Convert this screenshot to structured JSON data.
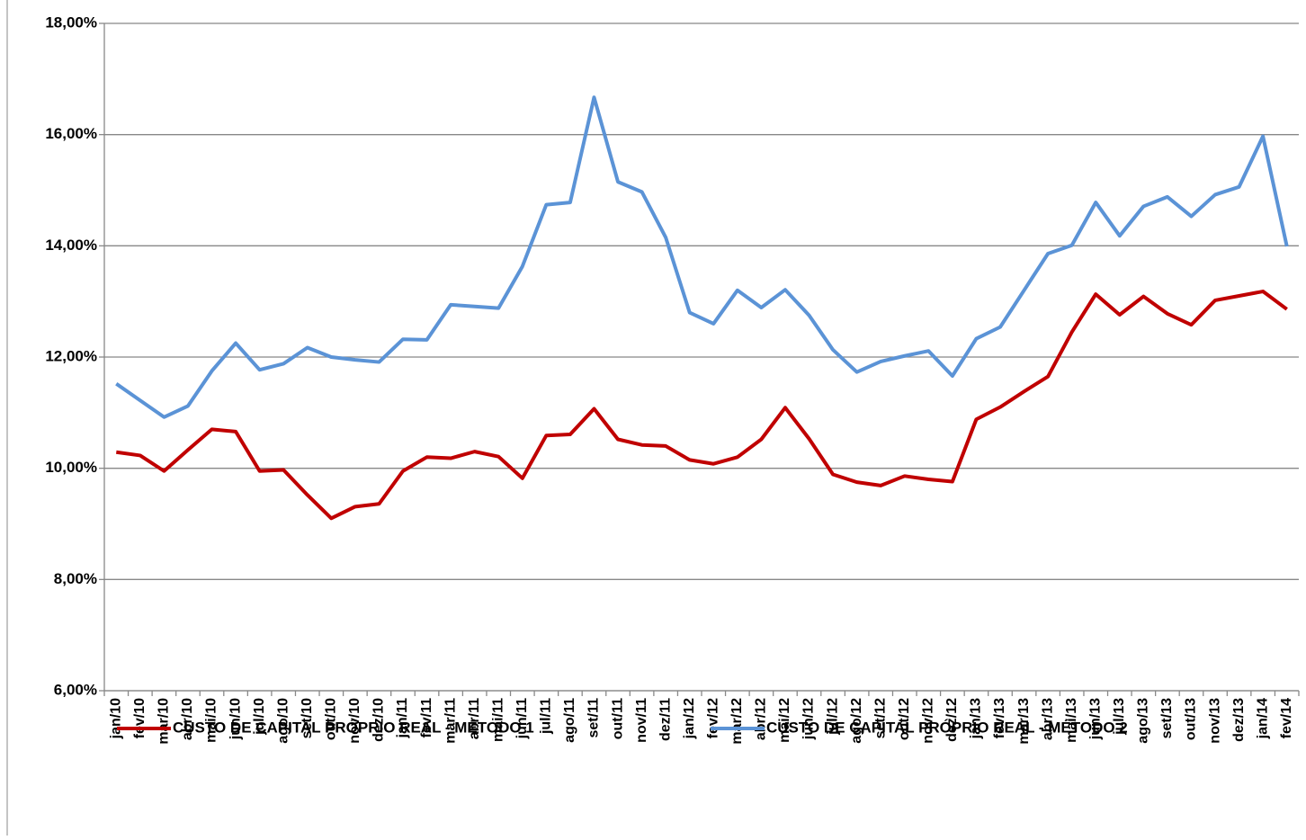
{
  "chart_data": {
    "type": "line",
    "categories": [
      "jan/10",
      "fev/10",
      "mar/10",
      "abr/10",
      "mai/10",
      "jun/10",
      "jul/10",
      "ago/10",
      "set/10",
      "out/10",
      "nov/10",
      "dez/10",
      "jan/11",
      "fev/11",
      "mar/11",
      "abr/11",
      "mai/11",
      "jun/11",
      "jul/11",
      "ago/11",
      "set/11",
      "out/11",
      "nov/11",
      "dez/11",
      "jan/12",
      "fev/12",
      "mar/12",
      "abr/12",
      "mai/12",
      "jun/12",
      "jul/12",
      "ago/12",
      "set/12",
      "out/12",
      "nov/12",
      "dez/12",
      "jan/13",
      "fev/13",
      "mar/13",
      "abr/13",
      "mai/13",
      "jun/13",
      "jul/13",
      "ago/13",
      "set/13",
      "out/13",
      "nov/13",
      "dez/13",
      "jan/14",
      "fev/14"
    ],
    "series": [
      {
        "name": "CUSTO DE CAPITAL PRÓPRIO REAL - MÉTODO 1",
        "color": "#c00000",
        "values": [
          10.29,
          10.23,
          9.95,
          10.33,
          10.7,
          10.66,
          9.95,
          9.97,
          9.52,
          9.1,
          9.31,
          9.36,
          9.95,
          10.2,
          10.18,
          10.3,
          10.21,
          9.82,
          10.59,
          10.61,
          11.07,
          10.52,
          10.42,
          10.4,
          10.15,
          10.08,
          10.2,
          10.52,
          11.09,
          10.53,
          9.89,
          9.75,
          9.69,
          9.86,
          9.8,
          9.76,
          10.88,
          11.1,
          11.38,
          11.65,
          12.45,
          13.13,
          12.76,
          13.09,
          12.78,
          12.58,
          13.02,
          13.1,
          13.18,
          12.86
        ]
      },
      {
        "name": "CUSTO DE CAPITAL PRÓPRIO REAL - MÉTODO 2",
        "color": "#5b93d6",
        "values": [
          11.52,
          11.22,
          10.92,
          11.12,
          11.75,
          12.25,
          11.77,
          11.88,
          12.17,
          12.0,
          11.95,
          11.91,
          12.32,
          12.31,
          12.94,
          12.91,
          12.88,
          13.63,
          14.74,
          14.78,
          16.67,
          15.15,
          14.97,
          14.15,
          12.8,
          12.6,
          13.2,
          12.89,
          13.21,
          12.75,
          12.13,
          11.73,
          11.92,
          12.02,
          12.11,
          11.66,
          12.33,
          12.54,
          13.2,
          13.86,
          14.01,
          14.78,
          14.18,
          14.71,
          14.88,
          14.53,
          14.92,
          15.06,
          15.97,
          13.99
        ]
      }
    ],
    "ylim": [
      6,
      18
    ],
    "yticks": [
      {
        "value": 6,
        "label": "6,00%"
      },
      {
        "value": 8,
        "label": "8,00%"
      },
      {
        "value": 10,
        "label": "10,00%"
      },
      {
        "value": 12,
        "label": "12,00%"
      },
      {
        "value": 14,
        "label": "14,00%"
      },
      {
        "value": 16,
        "label": "16,00%"
      },
      {
        "value": 18,
        "label": "18,00%"
      }
    ],
    "grid": true,
    "legend": "bottom"
  }
}
